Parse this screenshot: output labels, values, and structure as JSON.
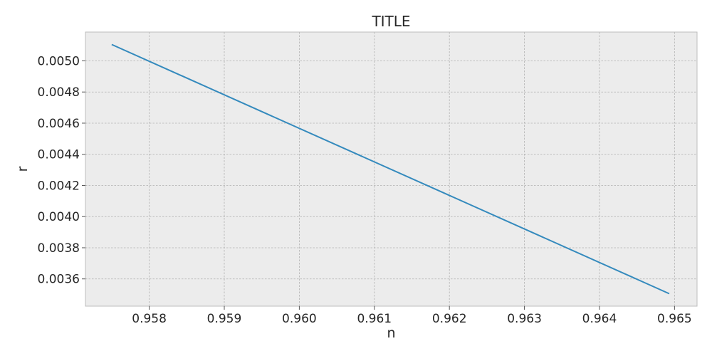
{
  "chart_data": {
    "type": "line",
    "title": "TITLE",
    "xlabel": "n",
    "ylabel": "r",
    "xlim": [
      0.95715,
      0.9653
    ],
    "ylim": [
      0.003425,
      0.005185
    ],
    "xticks": [
      0.958,
      0.959,
      0.96,
      0.961,
      0.962,
      0.963,
      0.964,
      0.965
    ],
    "xtick_labels": [
      "0.958",
      "0.959",
      "0.960",
      "0.961",
      "0.962",
      "0.963",
      "0.964",
      "0.965"
    ],
    "yticks": [
      0.0036,
      0.0038,
      0.004,
      0.0042,
      0.0044,
      0.0046,
      0.0048,
      0.005
    ],
    "ytick_labels": [
      "0.0036",
      "0.0038",
      "0.0040",
      "0.0042",
      "0.0044",
      "0.0046",
      "0.0048",
      "0.0050"
    ],
    "grid": true,
    "series": [
      {
        "color": "#348abd",
        "x": [
          0.9575,
          0.96493
        ],
        "y": [
          0.005105,
          0.003505
        ]
      }
    ]
  },
  "colors": {
    "plot_background": "#ececec",
    "grid": "#b0b0b0",
    "axes_edge": "#bcbcbc",
    "line": "#348abd"
  }
}
